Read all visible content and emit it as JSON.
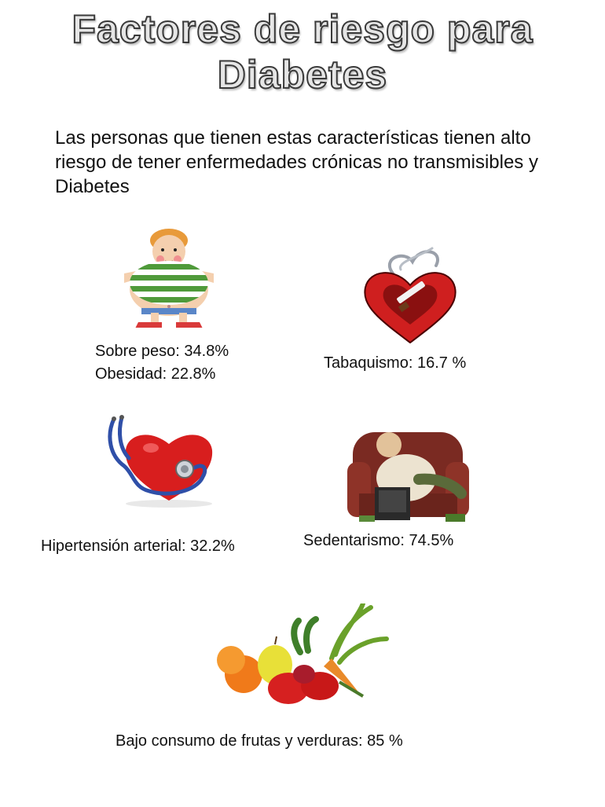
{
  "title": {
    "line1": "Factores de riesgo para",
    "line2": "Diabetes"
  },
  "intro": "Las personas que tienen estas características tienen alto riesgo de tener enfermedades crónicas no transmisibles y Diabetes",
  "factors": [
    {
      "lines": [
        "Sobre peso: 34.8%",
        "Obesidad:  22.8%"
      ],
      "icon": "overweight-child-icon"
    },
    {
      "lines": [
        "Tabaquismo: 16.7 %"
      ],
      "icon": "smoking-heart-icon"
    },
    {
      "lines": [
        "Hipertensión arterial: 32.2%"
      ],
      "icon": "heart-stethoscope-icon"
    },
    {
      "lines": [
        "Sedentarismo: 74.5%"
      ],
      "icon": "couch-man-tv-icon"
    },
    {
      "lines": [
        "Bajo consumo de frutas y verduras: 85 %"
      ],
      "icon": "fruits-vegetables-icon"
    }
  ],
  "colors": {
    "heart_red": "#d81e1e",
    "stethoscope_blue": "#2f4fa8",
    "couch_red": "#7a2a22"
  }
}
